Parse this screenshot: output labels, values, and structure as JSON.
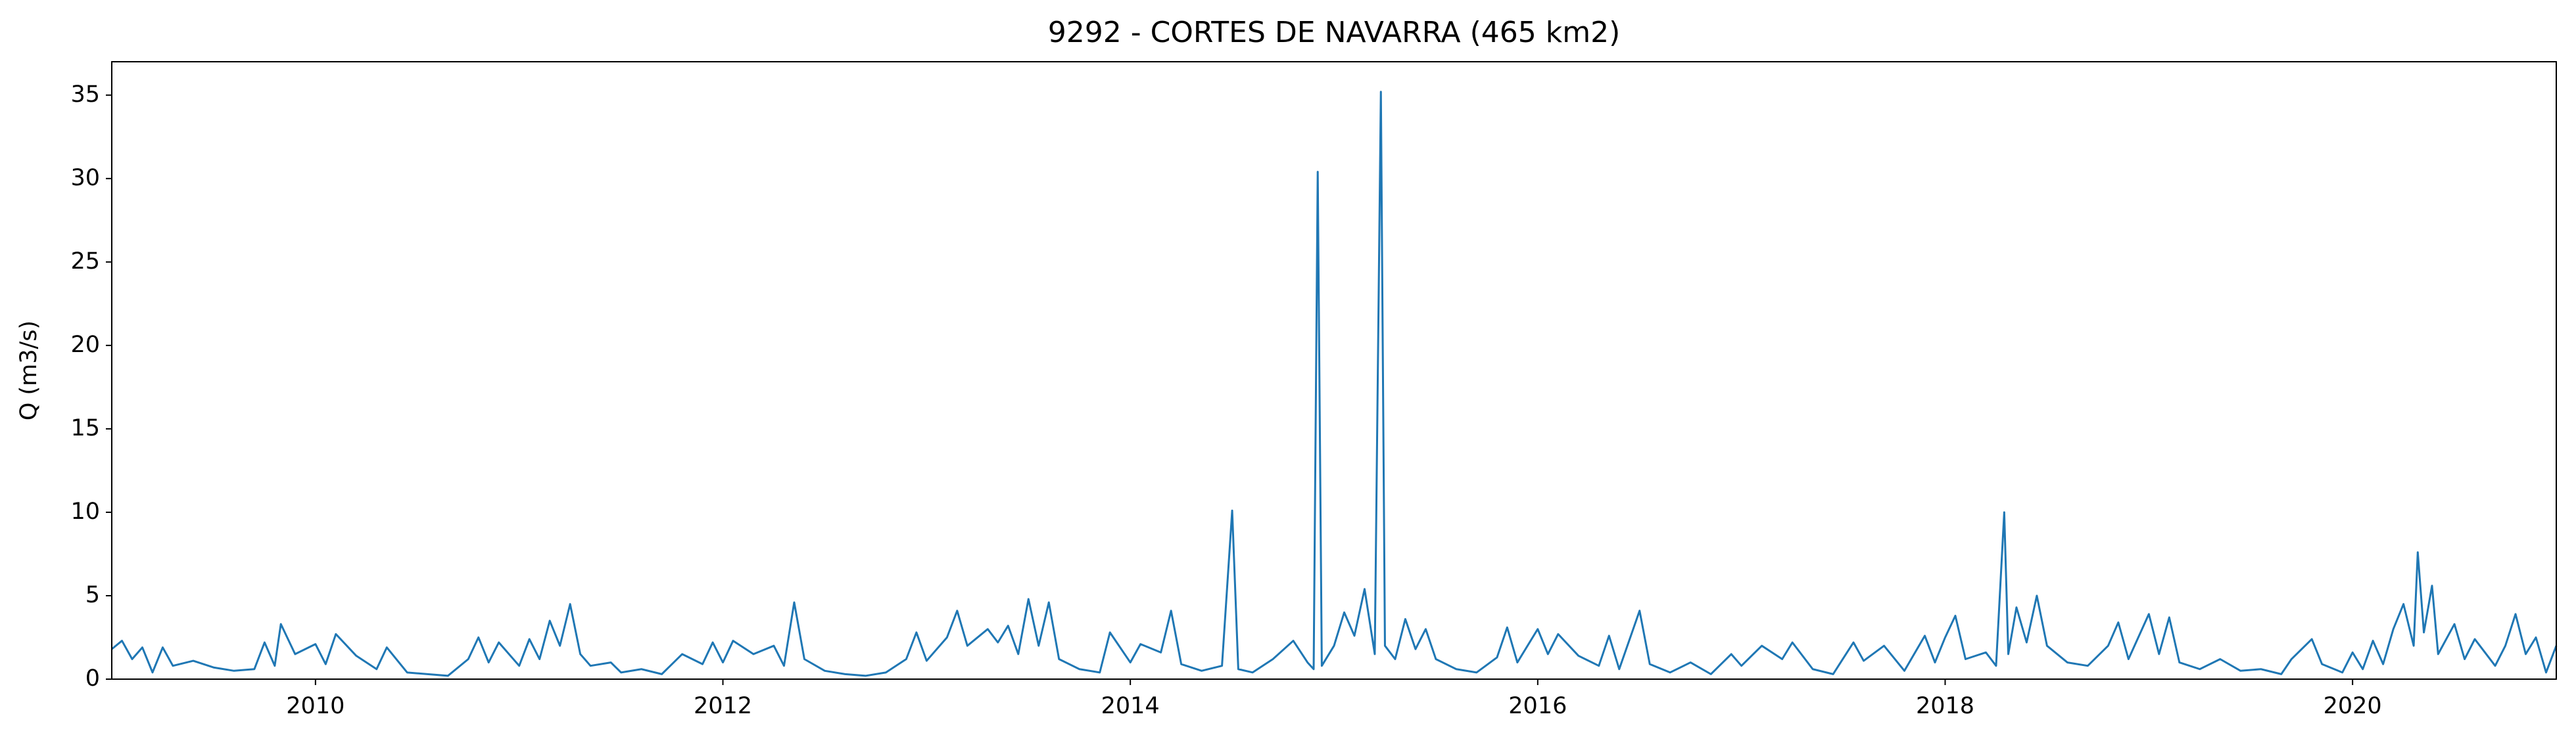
{
  "chart_data": {
    "type": "line",
    "title": "9292 - CORTES DE NAVARRA (465 km2)",
    "y_label": "Q (m3/s)",
    "color": "#1f77b4",
    "xlim": [
      2009.0,
      2021.0
    ],
    "xticks": [
      2010,
      2012,
      2014,
      2016,
      2018,
      2020
    ],
    "ylim": [
      0,
      37
    ],
    "yticks": [
      0,
      5,
      10,
      15,
      20,
      25,
      30,
      35
    ],
    "x": [
      2009.0,
      2009.05,
      2009.1,
      2009.15,
      2009.2,
      2009.25,
      2009.3,
      2009.4,
      2009.5,
      2009.6,
      2009.7,
      2009.75,
      2009.8,
      2009.83,
      2009.9,
      2010.0,
      2010.05,
      2010.1,
      2010.2,
      2010.3,
      2010.35,
      2010.45,
      2010.55,
      2010.65,
      2010.75,
      2010.8,
      2010.85,
      2010.9,
      2011.0,
      2011.05,
      2011.1,
      2011.15,
      2011.2,
      2011.25,
      2011.3,
      2011.35,
      2011.45,
      2011.5,
      2011.6,
      2011.7,
      2011.8,
      2011.9,
      2011.95,
      2012.0,
      2012.05,
      2012.15,
      2012.25,
      2012.3,
      2012.35,
      2012.4,
      2012.5,
      2012.6,
      2012.7,
      2012.8,
      2012.9,
      2012.95,
      2013.0,
      2013.1,
      2013.15,
      2013.2,
      2013.3,
      2013.35,
      2013.4,
      2013.45,
      2013.5,
      2013.55,
      2013.6,
      2013.65,
      2013.75,
      2013.85,
      2013.9,
      2014.0,
      2014.05,
      2014.15,
      2014.2,
      2014.25,
      2014.35,
      2014.45,
      2014.5,
      2014.53,
      2014.6,
      2014.7,
      2014.8,
      2014.87,
      2014.9,
      2014.92,
      2014.94,
      2015.0,
      2015.05,
      2015.1,
      2015.15,
      2015.2,
      2015.23,
      2015.25,
      2015.3,
      2015.35,
      2015.4,
      2015.45,
      2015.5,
      2015.6,
      2015.7,
      2015.8,
      2015.85,
      2015.9,
      2016.0,
      2016.05,
      2016.1,
      2016.2,
      2016.3,
      2016.35,
      2016.4,
      2016.5,
      2016.55,
      2016.65,
      2016.75,
      2016.85,
      2016.95,
      2017.0,
      2017.1,
      2017.2,
      2017.25,
      2017.35,
      2017.45,
      2017.55,
      2017.6,
      2017.7,
      2017.8,
      2017.9,
      2017.95,
      2018.0,
      2018.05,
      2018.1,
      2018.2,
      2018.25,
      2018.29,
      2018.31,
      2018.35,
      2018.4,
      2018.45,
      2018.5,
      2018.6,
      2018.7,
      2018.8,
      2018.85,
      2018.9,
      2019.0,
      2019.05,
      2019.1,
      2019.15,
      2019.25,
      2019.35,
      2019.45,
      2019.55,
      2019.65,
      2019.7,
      2019.8,
      2019.85,
      2019.95,
      2020.0,
      2020.05,
      2020.1,
      2020.15,
      2020.2,
      2020.25,
      2020.3,
      2020.32,
      2020.35,
      2020.39,
      2020.42,
      2020.5,
      2020.55,
      2020.6,
      2020.7,
      2020.75,
      2020.8,
      2020.85,
      2020.9,
      2020.95,
      2021.0
    ],
    "values": [
      1.8,
      2.3,
      1.2,
      1.9,
      0.4,
      1.9,
      0.8,
      1.1,
      0.7,
      0.5,
      0.6,
      2.2,
      0.8,
      3.3,
      1.5,
      2.1,
      0.9,
      2.7,
      1.4,
      0.6,
      1.9,
      0.4,
      0.3,
      0.2,
      1.2,
      2.5,
      1.0,
      2.2,
      0.8,
      2.4,
      1.2,
      3.5,
      2.0,
      4.5,
      1.5,
      0.8,
      1.0,
      0.4,
      0.6,
      0.3,
      1.5,
      0.9,
      2.2,
      1.0,
      2.3,
      1.5,
      2.0,
      0.8,
      4.6,
      1.2,
      0.5,
      0.3,
      0.2,
      0.4,
      1.2,
      2.8,
      1.1,
      2.5,
      4.1,
      2.0,
      3.0,
      2.2,
      3.2,
      1.5,
      4.8,
      2.0,
      4.6,
      1.2,
      0.6,
      0.4,
      2.8,
      1.0,
      2.1,
      1.6,
      4.1,
      0.9,
      0.5,
      0.8,
      10.1,
      0.6,
      0.4,
      1.2,
      2.3,
      1.0,
      0.6,
      30.4,
      0.8,
      2.0,
      4.0,
      2.6,
      5.4,
      1.5,
      35.2,
      2.0,
      1.2,
      3.6,
      1.8,
      3.0,
      1.2,
      0.6,
      0.4,
      1.3,
      3.1,
      1.0,
      3.0,
      1.5,
      2.7,
      1.4,
      0.8,
      2.6,
      0.6,
      4.1,
      0.9,
      0.4,
      1.0,
      0.3,
      1.5,
      0.8,
      2.0,
      1.2,
      2.2,
      0.6,
      0.3,
      2.2,
      1.1,
      2.0,
      0.5,
      2.6,
      1.0,
      2.5,
      3.8,
      1.2,
      1.6,
      0.8,
      10.0,
      1.5,
      4.3,
      2.2,
      5.0,
      2.0,
      1.0,
      0.8,
      2.0,
      3.4,
      1.2,
      3.9,
      1.5,
      3.7,
      1.0,
      0.6,
      1.2,
      0.5,
      0.6,
      0.3,
      1.2,
      2.4,
      0.9,
      0.4,
      1.6,
      0.6,
      2.3,
      0.9,
      3.0,
      4.5,
      2.0,
      7.6,
      2.8,
      5.6,
      1.5,
      3.3,
      1.2,
      2.4,
      0.8,
      2.0,
      3.9,
      1.5,
      2.5,
      0.4,
      2.0
    ]
  }
}
